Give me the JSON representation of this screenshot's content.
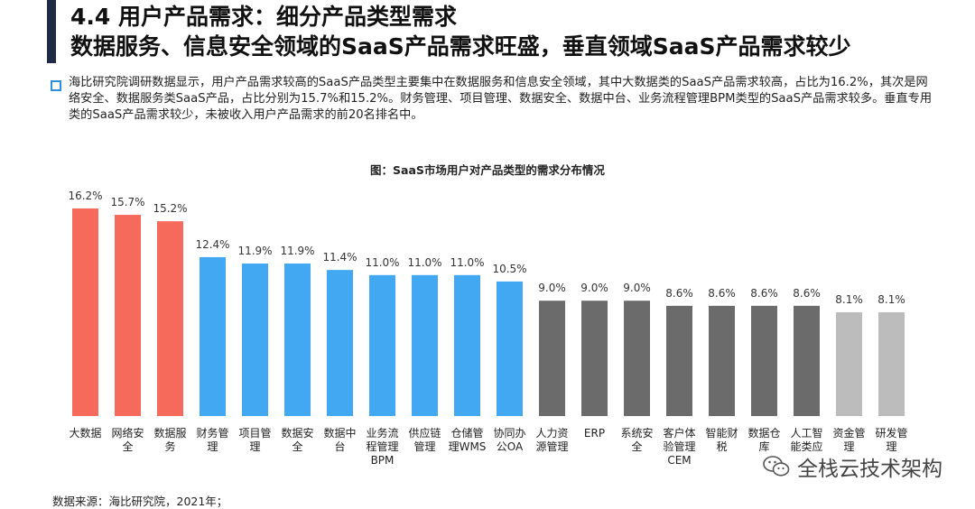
{
  "header": {
    "title_line1": "4.4 用户产品需求：细分产品类型需求",
    "title_line2": "数据服务、信息安全领域的SaaS产品需求旺盛，垂直领域SaaS产品需求较少"
  },
  "description": "海比研究院调研数据显示，用户产品需求较高的SaaS产品类型主要集中在数据服务和信息安全领域，其中大数据类的SaaS产品需求较高，占比为16.2%，其次是网络安全、数据服务类SaaS产品，占比分别为15.7%和15.2%。财务管理、项目管理、数据安全、数据中台、业务流程管理BPM类型的SaaS产品需求较多。垂直专用类的SaaS产品需求较少，未被收入用户产品需求的前20名排名中。",
  "chart_data": {
    "type": "bar",
    "title": "图：SaaS市场用户对产品类型的需求分布情况",
    "categories": [
      [
        "大数据"
      ],
      [
        "网络安",
        "全"
      ],
      [
        "数据服",
        "务"
      ],
      [
        "财务管",
        "理"
      ],
      [
        "项目管",
        "理"
      ],
      [
        "数据安",
        "全"
      ],
      [
        "数据中",
        "台"
      ],
      [
        "业务流",
        "程管理",
        "BPM"
      ],
      [
        "供应链",
        "管理"
      ],
      [
        "仓储管",
        "理WMS"
      ],
      [
        "协同办",
        "公OA"
      ],
      [
        "人力资",
        "源管理"
      ],
      [
        "ERP"
      ],
      [
        "系统安",
        "全"
      ],
      [
        "客户体",
        "验管理",
        "CEM"
      ],
      [
        "智能财",
        "税"
      ],
      [
        "数据仓",
        "库"
      ],
      [
        "人工智",
        "能类应"
      ],
      [
        "资金管",
        "理"
      ],
      [
        "研发管",
        "理"
      ]
    ],
    "values": [
      16.2,
      15.7,
      15.2,
      12.4,
      11.9,
      11.9,
      11.4,
      11.0,
      11.0,
      11.0,
      10.5,
      9.0,
      9.0,
      9.0,
      8.6,
      8.6,
      8.6,
      8.6,
      8.1,
      8.1
    ],
    "value_labels": [
      "16.2%",
      "15.7%",
      "15.2%",
      "12.4%",
      "11.9%",
      "11.9%",
      "11.4%",
      "11.0%",
      "11.0%",
      "11.0%",
      "10.5%",
      "9.0%",
      "9.0%",
      "9.0%",
      "8.6%",
      "8.6%",
      "8.6%",
      "8.6%",
      "8.1%",
      "8.1%"
    ],
    "bar_colors": [
      "#f56a5b",
      "#f56a5b",
      "#f56a5b",
      "#41a8f1",
      "#41a8f1",
      "#41a8f1",
      "#41a8f1",
      "#41a8f1",
      "#41a8f1",
      "#41a8f1",
      "#41a8f1",
      "#6b6b6b",
      "#6b6b6b",
      "#6b6b6b",
      "#6b6b6b",
      "#6b6b6b",
      "#6b6b6b",
      "#6b6b6b",
      "#bcbcbc",
      "#bcbcbc"
    ],
    "ylim": [
      0,
      18
    ],
    "grid": false,
    "xlabel": "",
    "ylabel": ""
  },
  "footer": {
    "source": "数据来源：海比研究院，2021年；",
    "brand": "全栈云技术架构"
  },
  "colors": {
    "title_bar": "#1f2a44",
    "bullet": "#2f8fdc"
  }
}
